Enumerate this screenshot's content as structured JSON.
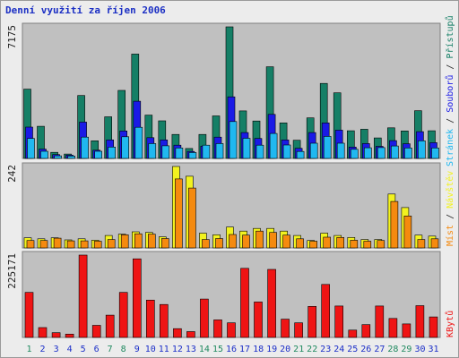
{
  "title": "Denní využití za říjen 2006",
  "colors": {
    "pages": "#157f66",
    "files": "#1a1ae6",
    "hits": "#20b8f0",
    "visits": "#f2f21f",
    "sites": "#f58a0f",
    "kbytes": "#ef1414",
    "weekend": "#208a60",
    "weekday": "#1c2fc8",
    "panel": "#c0c0c0"
  },
  "chart_data": [
    {
      "type": "bar",
      "name": "usage",
      "max_label": "7175",
      "ylim": [
        0,
        7175
      ],
      "legend": [
        "Přístupů",
        "Souborů",
        "Stránek"
      ],
      "categories": [
        "1",
        "2",
        "3",
        "4",
        "5",
        "6",
        "7",
        "8",
        "9",
        "10",
        "11",
        "12",
        "13",
        "14",
        "15",
        "16",
        "17",
        "18",
        "19",
        "20",
        "21",
        "22",
        "23",
        "24",
        "25",
        "26",
        "27",
        "28",
        "29",
        "30",
        "31"
      ],
      "weekend": [
        1,
        7,
        8,
        14,
        15,
        21,
        22,
        28,
        29
      ],
      "series": [
        {
          "name": "Přístupů",
          "values": [
            3780,
            1750,
            330,
            240,
            3430,
            960,
            2270,
            3710,
            5690,
            2360,
            2050,
            1310,
            540,
            1310,
            2320,
            7175,
            2590,
            2040,
            5000,
            1940,
            990,
            2210,
            4090,
            3580,
            1510,
            1590,
            1120,
            1670,
            1500,
            2600,
            1510
          ]
        },
        {
          "name": "Souborů",
          "values": [
            1710,
            510,
            210,
            180,
            1980,
            450,
            1010,
            1500,
            3120,
            1130,
            1010,
            720,
            380,
            670,
            1160,
            3360,
            1410,
            1090,
            2400,
            1010,
            550,
            1410,
            1940,
            1540,
            620,
            810,
            660,
            970,
            800,
            1460,
            860
          ]
        },
        {
          "name": "Stránek",
          "values": [
            1090,
            390,
            140,
            130,
            1160,
            390,
            620,
            1180,
            1700,
            810,
            690,
            570,
            320,
            720,
            810,
            2010,
            1100,
            720,
            1360,
            730,
            380,
            830,
            1200,
            830,
            500,
            580,
            590,
            680,
            570,
            960,
            570
          ]
        }
      ]
    },
    {
      "type": "bar",
      "name": "visits",
      "max_label": "242",
      "ylim": [
        0,
        242
      ],
      "legend": [
        "Návštěv",
        "Míst"
      ],
      "series": [
        {
          "name": "Návštěv",
          "values": [
            30,
            27,
            30,
            24,
            27,
            23,
            37,
            41,
            48,
            46,
            33,
            242,
            213,
            44,
            39,
            62,
            50,
            58,
            58,
            50,
            37,
            22,
            44,
            37,
            31,
            25,
            25,
            160,
            120,
            38,
            35
          ]
        },
        {
          "name": "Míst",
          "values": [
            22,
            22,
            29,
            21,
            21,
            20,
            25,
            39,
            42,
            41,
            28,
            205,
            178,
            25,
            28,
            40,
            38,
            50,
            46,
            38,
            27,
            20,
            32,
            31,
            23,
            20,
            22,
            138,
            95,
            25,
            27
          ]
        }
      ]
    },
    {
      "type": "bar",
      "name": "kbytes",
      "max_label": "225171",
      "ylim": [
        0,
        225171
      ],
      "legend": [
        "KBytů"
      ],
      "series": [
        {
          "name": "KBytů",
          "values": [
            123000,
            27000,
            13000,
            9000,
            225171,
            33000,
            61000,
            123000,
            215000,
            102000,
            90000,
            24000,
            16000,
            105000,
            48000,
            40000,
            189000,
            97000,
            186000,
            50000,
            40000,
            85000,
            145000,
            86000,
            20000,
            35000,
            86000,
            52000,
            37000,
            87000,
            56000
          ]
        }
      ]
    }
  ]
}
